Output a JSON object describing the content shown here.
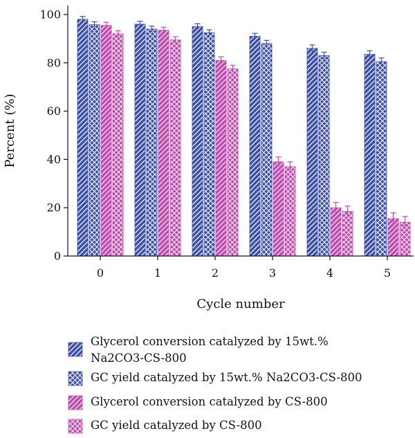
{
  "chart_data": {
    "type": "bar",
    "title": "",
    "xlabel": "Cycle number",
    "ylabel": "Percent (%)",
    "ylim": [
      0,
      100
    ],
    "yticks": [
      0,
      20,
      40,
      60,
      80,
      100
    ],
    "categories": [
      "0",
      "1",
      "2",
      "3",
      "4",
      "5"
    ],
    "legend_position": "bottom",
    "series": [
      {
        "name": "Glycerol conversion catalyzed by 15wt.% Na2CO3-CS-800",
        "legend_lines": [
          "Glycerol conversion catalyzed by 15wt.%",
          "Na2CO3-CS-800"
        ],
        "color": "#3b4fb0",
        "hatch": "diagonal-up",
        "values": [
          98,
          96,
          95,
          91,
          86,
          83.5
        ],
        "errors": [
          1.2,
          1.2,
          1.2,
          1.2,
          1.4,
          1.5
        ]
      },
      {
        "name": "GC yield catalyzed by 15wt.% Na2CO3-CS-800",
        "legend_lines": [
          "GC yield catalyzed by 15wt.% Na2CO3-CS-800"
        ],
        "color": "#3b4fb0",
        "hatch": "cross",
        "values": [
          95.8,
          94,
          92.5,
          88,
          83,
          80.5
        ],
        "errors": [
          1.2,
          1.2,
          1.2,
          1.3,
          1.4,
          1.5
        ]
      },
      {
        "name": "Glycerol conversion catalyzed by CS-800",
        "legend_lines": [
          "Glycerol conversion catalyzed by CS-800"
        ],
        "color": "#c646b4",
        "hatch": "diagonal-up",
        "values": [
          95.5,
          93.5,
          81,
          39,
          20,
          15.5
        ],
        "errors": [
          1.3,
          1.3,
          1.5,
          2,
          2.2,
          2.4
        ]
      },
      {
        "name": "GC yield catalyzed by CS-800",
        "legend_lines": [
          "GC yield catalyzed by CS-800"
        ],
        "color": "#c646b4",
        "hatch": "cross",
        "values": [
          92,
          89.5,
          77.5,
          37,
          18.5,
          14
        ],
        "errors": [
          1.3,
          1.3,
          1.5,
          2,
          2.2,
          2.4
        ]
      }
    ]
  }
}
